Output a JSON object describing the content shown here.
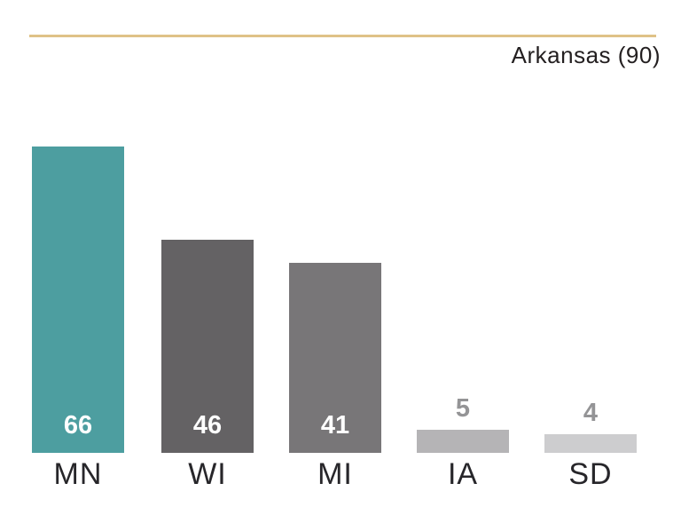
{
  "header": {
    "title": "Arkansas (90)"
  },
  "colors": {
    "background": "#ffffff",
    "accent_line": "#dfc287",
    "title_text": "#231f20",
    "category_text": "#27262a"
  },
  "chart_data": {
    "type": "bar",
    "title": "Arkansas (90)",
    "categories": [
      "MN",
      "WI",
      "MI",
      "IA",
      "SD"
    ],
    "values": [
      66,
      46,
      41,
      5,
      4
    ],
    "reference_value": 90,
    "reference_label": "Arkansas (90)",
    "xlabel": "",
    "ylabel": "",
    "ylim": [
      0,
      90
    ],
    "grid": false,
    "legend": "none",
    "bar_colors": [
      "#4d9ea0",
      "#646264",
      "#787678",
      "#b5b4b6",
      "#cdcdcf"
    ],
    "value_label_inside": [
      true,
      true,
      true,
      false,
      false
    ],
    "value_label_colors": [
      "#ffffff",
      "#ffffff",
      "#ffffff",
      "#949496",
      "#949496"
    ]
  }
}
